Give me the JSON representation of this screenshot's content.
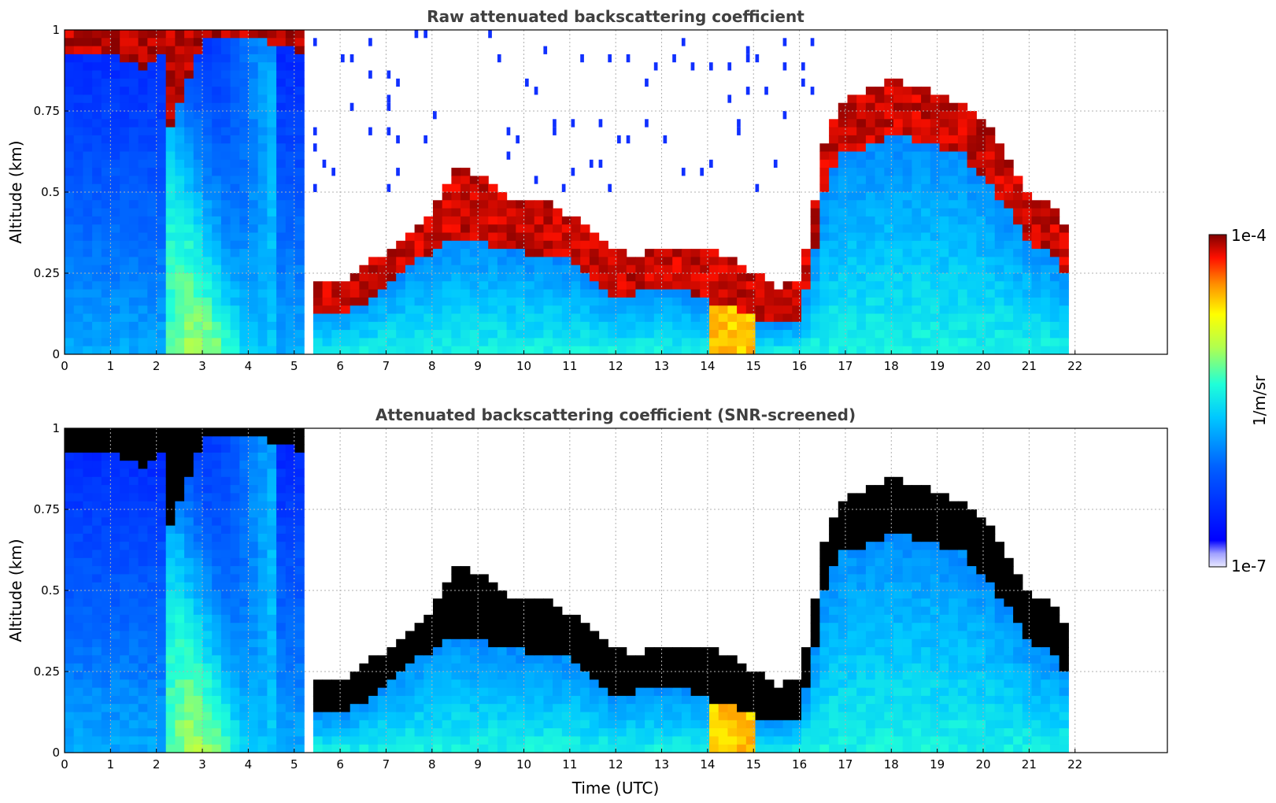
{
  "chart_data": [
    {
      "type": "heatmap",
      "title": "Raw attenuated backscattering coefficient",
      "xlabel": "",
      "ylabel": "Altitude (km)",
      "xlim": [
        0,
        24
      ],
      "ylim": [
        0,
        1
      ],
      "xticks": [
        "0",
        "1",
        "2",
        "3",
        "4",
        "5",
        "6",
        "7",
        "8",
        "9",
        "10",
        "11",
        "12",
        "13",
        "14",
        "15",
        "16",
        "17",
        "18",
        "19",
        "20",
        "21",
        "22"
      ],
      "yticks": [
        "0",
        "0.25",
        "0.5",
        "0.75",
        "1"
      ],
      "grid": true,
      "variant": "raw",
      "data_end_time": 21.8,
      "gap_hours": [
        5.3,
        5.5
      ],
      "layer_top_km": [
        [
          0,
          0.94
        ],
        [
          0.5,
          0.93
        ],
        [
          1,
          0.94
        ],
        [
          1.5,
          0.93
        ],
        [
          1.8,
          0.86
        ],
        [
          2.2,
          0.94
        ],
        [
          2.3,
          0.72
        ],
        [
          3,
          0.98
        ],
        [
          4,
          0.98
        ],
        [
          5,
          0.97
        ],
        [
          5.35,
          0.9
        ],
        [
          5.5,
          0.22
        ],
        [
          6,
          0.22
        ],
        [
          6.5,
          0.27
        ],
        [
          7,
          0.32
        ],
        [
          7.5,
          0.37
        ],
        [
          8,
          0.45
        ],
        [
          8.3,
          0.52
        ],
        [
          8.6,
          0.6
        ],
        [
          9,
          0.55
        ],
        [
          9.5,
          0.5
        ],
        [
          10,
          0.47
        ],
        [
          10.5,
          0.47
        ],
        [
          11,
          0.43
        ],
        [
          11.5,
          0.37
        ],
        [
          12,
          0.33
        ],
        [
          12.5,
          0.3
        ],
        [
          13,
          0.34
        ],
        [
          13.5,
          0.32
        ],
        [
          14,
          0.33
        ],
        [
          14.5,
          0.3
        ],
        [
          15,
          0.25
        ],
        [
          15.5,
          0.21
        ],
        [
          16,
          0.22
        ],
        [
          16.3,
          0.45
        ],
        [
          16.6,
          0.7
        ],
        [
          17,
          0.78
        ],
        [
          17.5,
          0.82
        ],
        [
          18,
          0.85
        ],
        [
          18.5,
          0.83
        ],
        [
          19,
          0.8
        ],
        [
          19.5,
          0.78
        ],
        [
          20,
          0.72
        ],
        [
          20.5,
          0.62
        ],
        [
          21,
          0.5
        ],
        [
          21.5,
          0.45
        ],
        [
          21.8,
          0.4
        ]
      ],
      "layer_base_km": [
        [
          5.5,
          0.13
        ],
        [
          6,
          0.12
        ],
        [
          6.5,
          0.16
        ],
        [
          7,
          0.22
        ],
        [
          7.5,
          0.27
        ],
        [
          8,
          0.32
        ],
        [
          8.5,
          0.36
        ],
        [
          9,
          0.34
        ],
        [
          9.5,
          0.33
        ],
        [
          10,
          0.31
        ],
        [
          10.5,
          0.3
        ],
        [
          11,
          0.29
        ],
        [
          11.5,
          0.22
        ],
        [
          12,
          0.18
        ],
        [
          12.5,
          0.19
        ],
        [
          13,
          0.2
        ],
        [
          13.5,
          0.19
        ],
        [
          14,
          0.17
        ],
        [
          14.5,
          0.14
        ],
        [
          15,
          0.11
        ],
        [
          15.5,
          0.09
        ],
        [
          16,
          0.11
        ],
        [
          16.3,
          0.3
        ],
        [
          16.6,
          0.55
        ],
        [
          17,
          0.63
        ],
        [
          17.5,
          0.64
        ],
        [
          18,
          0.68
        ],
        [
          18.5,
          0.66
        ],
        [
          19,
          0.64
        ],
        [
          19.5,
          0.62
        ],
        [
          20,
          0.55
        ],
        [
          20.5,
          0.45
        ],
        [
          21,
          0.35
        ],
        [
          21.5,
          0.3
        ],
        [
          21.8,
          0.25
        ]
      ]
    },
    {
      "type": "heatmap",
      "title": "Attenuated backscattering coefficient (SNR-screened)",
      "xlabel": "Time (UTC)",
      "ylabel": "Altitude (km)",
      "xlim": [
        0,
        24
      ],
      "ylim": [
        0,
        1
      ],
      "xticks": [
        "0",
        "1",
        "2",
        "3",
        "4",
        "5",
        "6",
        "7",
        "8",
        "9",
        "10",
        "11",
        "12",
        "13",
        "14",
        "15",
        "16",
        "17",
        "18",
        "19",
        "20",
        "21",
        "22"
      ],
      "yticks": [
        "0",
        "0.25",
        "0.5",
        "0.75",
        "1"
      ],
      "grid": true,
      "variant": "screened",
      "data_end_time": 21.8,
      "gap_hours": [
        5.3,
        5.5
      ]
    }
  ],
  "colorbar": {
    "label": "1/m/sr",
    "max_label": "1e-4",
    "min_label": "1e-7",
    "scale": "log",
    "range": [
      1e-07,
      0.0001
    ]
  },
  "colors": {
    "saturated_screened": "#000000",
    "grid": "#b0b0b0"
  }
}
